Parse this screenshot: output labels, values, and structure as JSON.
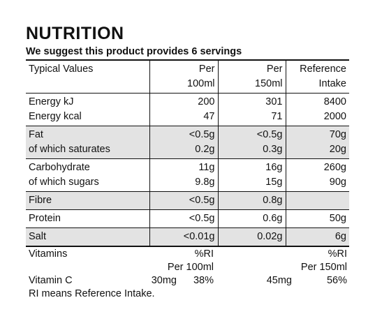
{
  "title": "NUTRITION",
  "subtitle": "We suggest this product provides 6 servings",
  "headers": {
    "col1": "Typical Values",
    "col2_line1": "Per",
    "col2_line2": "100ml",
    "col3_line1": "Per",
    "col3_line2": "150ml",
    "col4_line1": "Reference",
    "col4_line2": "Intake"
  },
  "rows": [
    {
      "label": "Energy kJ",
      "per100": "200",
      "per150": "301",
      "ri": "8400"
    },
    {
      "label": "Energy kcal",
      "per100": "47",
      "per150": "71",
      "ri": "2000"
    },
    {
      "label": "Fat",
      "per100": "<0.5g",
      "per150": "<0.5g",
      "ri": "70g"
    },
    {
      "label": "of which saturates",
      "per100": "0.2g",
      "per150": "0.3g",
      "ri": "20g"
    },
    {
      "label": "Carbohydrate",
      "per100": "11g",
      "per150": "16g",
      "ri": "260g"
    },
    {
      "label": "of which sugars",
      "per100": "9.8g",
      "per150": "15g",
      "ri": "90g"
    },
    {
      "label": "Fibre",
      "per100": "<0.5g",
      "per150": "0.8g",
      "ri": ""
    },
    {
      "label": "Protein",
      "per100": "<0.5g",
      "per150": "0.6g",
      "ri": "50g"
    },
    {
      "label": "Salt",
      "per100": "<0.01g",
      "per150": "0.02g",
      "ri": "6g"
    }
  ],
  "vitamins": {
    "heading": "Vitamins",
    "ri_label": "%RI",
    "per100_label": "Per 100ml",
    "per150_label": "Per 150ml",
    "name": "Vitamin C",
    "per100_amount": "30mg",
    "per100_ri": "38%",
    "per150_amount": "45mg",
    "per150_ri": "56%"
  },
  "footnote": "RI means Reference Intake.",
  "colors": {
    "shade": "#e3e3e3",
    "text": "#111111"
  }
}
